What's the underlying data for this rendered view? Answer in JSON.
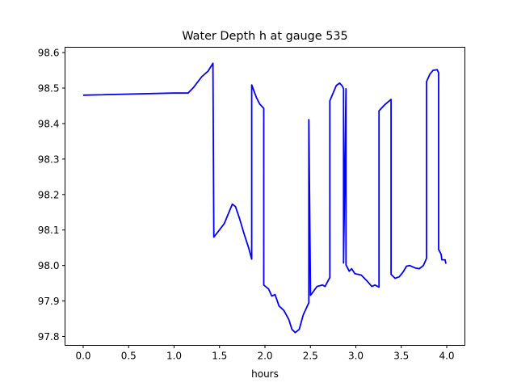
{
  "chart_data": {
    "type": "line",
    "title": "Water Depth h at gauge 535",
    "xlabel": "hours",
    "ylabel": "",
    "xlim": [
      -0.2,
      4.2
    ],
    "ylim": [
      97.775,
      98.615
    ],
    "xticks": [
      0.0,
      0.5,
      1.0,
      1.5,
      2.0,
      2.5,
      3.0,
      3.5,
      4.0
    ],
    "xtick_labels": [
      "0.0",
      "0.5",
      "1.0",
      "1.5",
      "2.0",
      "2.5",
      "3.0",
      "3.5",
      "4.0"
    ],
    "yticks": [
      97.8,
      97.9,
      98.0,
      98.1,
      98.2,
      98.3,
      98.4,
      98.5,
      98.6
    ],
    "ytick_labels": [
      "97.8",
      "97.9",
      "98.0",
      "98.1",
      "98.2",
      "98.3",
      "98.4",
      "98.5",
      "98.6"
    ],
    "grid": false,
    "series": [
      {
        "name": "h",
        "color": "#0000ff",
        "x": [
          0,
          0.993,
          1.153,
          1.215,
          1.304,
          1.375,
          1.428,
          1.437,
          1.499,
          1.552,
          1.596,
          1.641,
          1.676,
          1.721,
          1.774,
          1.818,
          1.854,
          1.854,
          1.907,
          1.942,
          1.987,
          1.987,
          2.04,
          2.075,
          2.111,
          2.155,
          2.209,
          2.262,
          2.297,
          2.333,
          2.377,
          2.421,
          2.483,
          2.483,
          2.501,
          2.572,
          2.634,
          2.661,
          2.714,
          2.714,
          2.785,
          2.821,
          2.847,
          2.865,
          2.865,
          2.892,
          2.892,
          2.927,
          2.954,
          2.989,
          3.06,
          3.122,
          3.175,
          3.211,
          3.255,
          3.255,
          3.326,
          3.388,
          3.388,
          3.432,
          3.477,
          3.521,
          3.557,
          3.592,
          3.654,
          3.698,
          3.743,
          3.778,
          3.778,
          3.814,
          3.849,
          3.894,
          3.911,
          3.911,
          3.938,
          3.947,
          3.982,
          3.991
        ],
        "y": [
          98.48,
          98.486,
          98.486,
          98.502,
          98.532,
          98.548,
          98.57,
          98.08,
          98.1,
          98.118,
          98.145,
          98.173,
          98.166,
          98.132,
          98.086,
          98.052,
          98.018,
          98.509,
          98.473,
          98.455,
          98.443,
          97.945,
          97.934,
          97.914,
          97.918,
          97.886,
          97.873,
          97.848,
          97.82,
          97.811,
          97.82,
          97.861,
          97.895,
          98.411,
          97.916,
          97.941,
          97.945,
          97.941,
          97.966,
          98.464,
          98.507,
          98.514,
          98.507,
          98.498,
          98.007,
          98.498,
          98.002,
          97.984,
          97.991,
          97.977,
          97.973,
          97.957,
          97.941,
          97.945,
          97.939,
          98.436,
          98.455,
          98.468,
          97.975,
          97.964,
          97.968,
          97.982,
          97.998,
          98.0,
          97.993,
          97.991,
          98.0,
          98.02,
          98.518,
          98.539,
          98.55,
          98.552,
          98.543,
          98.045,
          98.032,
          98.016,
          98.016,
          98.005
        ]
      }
    ]
  }
}
